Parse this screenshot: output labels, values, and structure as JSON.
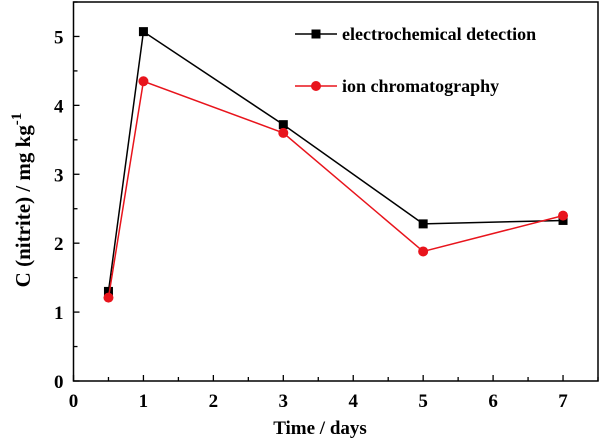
{
  "chart_data": {
    "type": "line",
    "title": "",
    "xlabel": "Time / days",
    "ylabel": "C (nitrite) / mg kg",
    "ylabel_superscript": "-1",
    "xlim": [
      0,
      7.5
    ],
    "ylim": [
      0,
      5.5
    ],
    "xticks": [
      "0",
      "1",
      "2",
      "3",
      "4",
      "5",
      "6",
      "7"
    ],
    "yticks": [
      "0",
      "1",
      "2",
      "3",
      "4",
      "5"
    ],
    "grid": false,
    "legend_position": "top-right",
    "x": [
      0.5,
      1,
      3,
      5,
      7
    ],
    "series": [
      {
        "name": "electrochemical detection",
        "color": "#000000",
        "marker": "square",
        "values": [
          1.3,
          5.07,
          3.72,
          2.28,
          2.33
        ]
      },
      {
        "name": "ion chromatography",
        "color": "#e8141c",
        "marker": "circle",
        "values": [
          1.21,
          4.35,
          3.6,
          1.88,
          2.4
        ]
      }
    ]
  }
}
